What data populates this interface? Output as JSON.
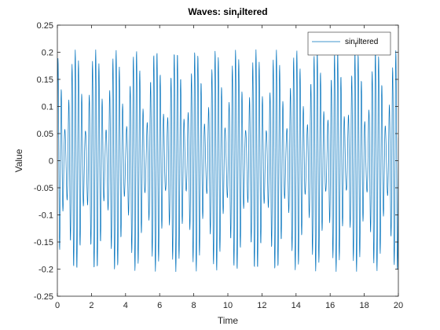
{
  "chart_data": {
    "type": "line",
    "title": {
      "main": "Waves: sin",
      "sub": "f",
      "rest": "iltered"
    },
    "xlabel": "Time",
    "ylabel": "Value",
    "xlim": [
      0,
      20
    ],
    "ylim": [
      -0.25,
      0.25
    ],
    "xticks": [
      0,
      2,
      4,
      6,
      8,
      10,
      12,
      14,
      16,
      18,
      20
    ],
    "yticks": [
      -0.25,
      -0.2,
      -0.15,
      -0.1,
      -0.05,
      0,
      0.05,
      0.1,
      0.15,
      0.2,
      0.25
    ],
    "xtick_labels": [
      "0",
      "2",
      "4",
      "6",
      "8",
      "10",
      "12",
      "14",
      "16",
      "18",
      "20"
    ],
    "ytick_labels": [
      "-0.25",
      "-0.2",
      "-0.15",
      "-0.1",
      "-0.05",
      "0",
      "0.05",
      "0.1",
      "0.15",
      "0.2",
      "0.25"
    ],
    "grid": false,
    "legend_position": "top-right",
    "series": [
      {
        "name": {
          "main": "sin",
          "sub": "f",
          "rest": "iltered"
        },
        "color": "#0072BD",
        "x_start": 0,
        "x_end": 20,
        "n_points": 1601,
        "components": [
          {
            "amplitude": 0.13,
            "frequency": 5.0,
            "phase": 0.0
          },
          {
            "amplitude": 0.075,
            "frequency": 5.85,
            "phase": 0.6
          }
        ]
      }
    ]
  }
}
